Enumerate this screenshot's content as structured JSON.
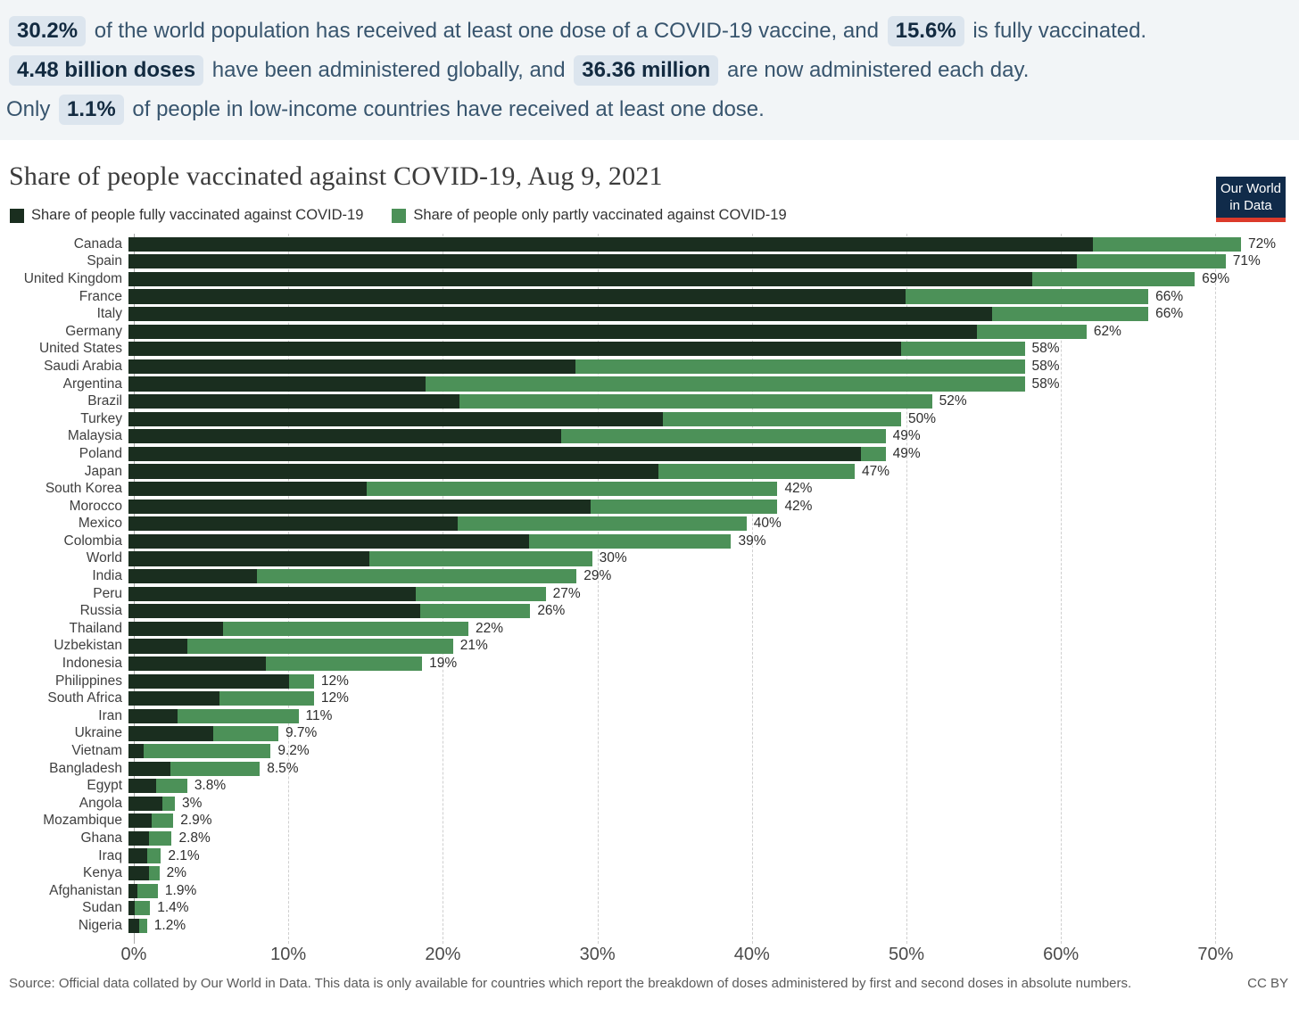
{
  "banner": {
    "lines": [
      [
        {
          "t": "30.2%",
          "hl": true
        },
        {
          "t": " of the world population has received at least one dose of a COVID-19 vaccine, and ",
          "hl": false
        },
        {
          "t": "15.6%",
          "hl": true
        },
        {
          "t": " is fully vaccinated.",
          "hl": false
        }
      ],
      [
        {
          "t": "4.48 billion doses",
          "hl": true
        },
        {
          "t": " have been administered globally, and ",
          "hl": false
        },
        {
          "t": "36.36 million",
          "hl": true
        },
        {
          "t": " are now administered each day.",
          "hl": false
        }
      ],
      [
        {
          "t": "Only ",
          "hl": false
        },
        {
          "t": "1.1%",
          "hl": true
        },
        {
          "t": " of people in low-income countries have received at least one dose.",
          "hl": false
        }
      ]
    ]
  },
  "header": {
    "title": "Share of people vaccinated against COVID-19, Aug 9, 2021",
    "logo_line1": "Our World",
    "logo_line2": "in Data"
  },
  "legend": [
    {
      "label": "Share of people fully vaccinated against COVID-19",
      "color": "#1a2e1f"
    },
    {
      "label": "Share of people only partly vaccinated against COVID-19",
      "color": "#4c9158"
    }
  ],
  "chart_data": {
    "type": "bar",
    "orientation": "horizontal",
    "stacked": true,
    "series_names": [
      "Share of people fully vaccinated against COVID-19",
      "Share of people only partly vaccinated against COVID-19"
    ],
    "categories": [
      "Canada",
      "Spain",
      "United Kingdom",
      "France",
      "Italy",
      "Germany",
      "United States",
      "Saudi Arabia",
      "Argentina",
      "Brazil",
      "Turkey",
      "Malaysia",
      "Poland",
      "Japan",
      "South Korea",
      "Morocco",
      "Mexico",
      "Colombia",
      "World",
      "India",
      "Peru",
      "Russia",
      "Thailand",
      "Uzbekistan",
      "Indonesia",
      "Philippines",
      "South Africa",
      "Iran",
      "Ukraine",
      "Vietnam",
      "Bangladesh",
      "Egypt",
      "Angola",
      "Mozambique",
      "Ghana",
      "Iraq",
      "Kenya",
      "Afghanistan",
      "Sudan",
      "Nigeria"
    ],
    "totals": [
      72,
      71,
      69,
      66,
      66,
      62,
      58,
      58,
      58,
      52,
      50,
      49,
      49,
      47,
      42,
      42,
      40,
      39,
      30,
      29,
      27,
      26,
      22,
      21,
      19,
      12,
      12,
      11,
      9.7,
      9.2,
      8.5,
      3.8,
      3,
      2.9,
      2.8,
      2.1,
      2,
      1.9,
      1.4,
      1.2
    ],
    "total_labels": [
      "72%",
      "71%",
      "69%",
      "66%",
      "66%",
      "62%",
      "58%",
      "58%",
      "58%",
      "52%",
      "50%",
      "49%",
      "49%",
      "47%",
      "42%",
      "42%",
      "40%",
      "39%",
      "30%",
      "29%",
      "27%",
      "26%",
      "22%",
      "21%",
      "19%",
      "12%",
      "12%",
      "11%",
      "9.7%",
      "9.2%",
      "8.5%",
      "3.8%",
      "3%",
      "2.9%",
      "2.8%",
      "2.1%",
      "2%",
      "1.9%",
      "1.4%",
      "1.2%"
    ],
    "fully_vaccinated": [
      62.4,
      61.4,
      58.5,
      50.3,
      55.9,
      54.9,
      50.0,
      28.9,
      19.2,
      21.4,
      34.6,
      28.0,
      47.4,
      34.3,
      15.4,
      29.9,
      21.3,
      25.9,
      15.6,
      8.3,
      18.6,
      18.9,
      6.1,
      3.8,
      8.9,
      10.4,
      5.9,
      3.2,
      5.5,
      1.0,
      2.7,
      1.8,
      2.2,
      1.5,
      1.3,
      1.2,
      1.3,
      0.6,
      0.4,
      0.7
    ],
    "x_ticks": [
      "0%",
      "10%",
      "20%",
      "30%",
      "40%",
      "50%",
      "60%",
      "70%"
    ],
    "xlim": [
      0,
      76
    ],
    "grid": "vertical-dashed",
    "legend_position": "top",
    "colors": {
      "fully": "#1a2e1f",
      "partly": "#4c9158"
    }
  },
  "footer": {
    "source": "Source: Official data collated by Our World in Data. This data is only available for countries which report the breakdown of doses administered by first and second doses in absolute numbers.",
    "license": "CC BY"
  }
}
